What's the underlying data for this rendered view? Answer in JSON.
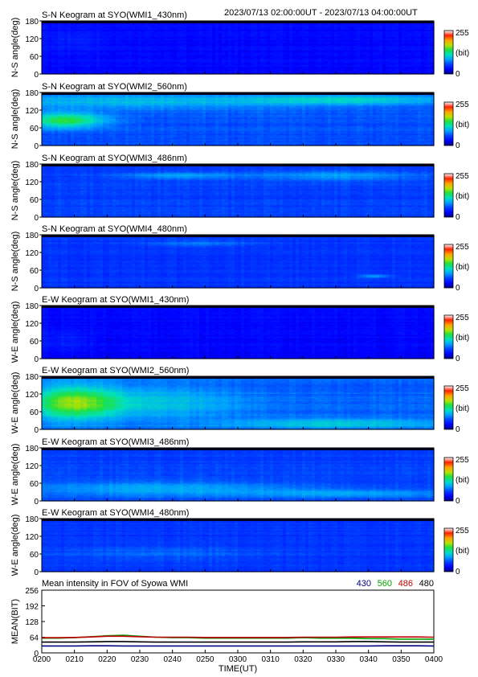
{
  "header": {
    "time_range": "2023/07/13 02:00:00UT - 2023/07/13 04:00:00UT"
  },
  "colorbar": {
    "max_label": "255",
    "unit_label": "(bit)",
    "min_label": "0"
  },
  "colors": {
    "scale": [
      "#000080",
      "#0000ff",
      "#0040ff",
      "#00a0ff",
      "#00e0c0",
      "#20e040",
      "#c0e000",
      "#ffa000",
      "#ff2000",
      "#ffffff"
    ],
    "line_430": "#000080",
    "line_560": "#00a000",
    "line_486": "#c00000",
    "line_480": "#000000"
  },
  "chart_data": [
    {
      "type": "heatmap",
      "title": "S-N Keogram at SYO(WMI1_430nm)",
      "ylabel": "N-S angle(deg)",
      "yticks": [
        "180",
        "120",
        "60",
        "0"
      ],
      "ylim": [
        0,
        180
      ],
      "xlim": [
        "02:00",
        "04:00"
      ],
      "base": 0.12,
      "blobs": [
        {
          "t": 0.08,
          "a": 110,
          "st": 0.06,
          "sa": 25,
          "v": 0.04
        }
      ]
    },
    {
      "type": "heatmap",
      "title": "S-N Keogram at SYO(WMI2_560nm)",
      "ylabel": "N-S angle(deg)",
      "yticks": [
        "180",
        "120",
        "60",
        "0"
      ],
      "ylim": [
        0,
        180
      ],
      "xlim": [
        "02:00",
        "04:00"
      ],
      "base": 0.24,
      "blobs": [
        {
          "t": 0.06,
          "a": 85,
          "st": 0.07,
          "sa": 18,
          "v": 0.32
        },
        {
          "t": 0.22,
          "a": 150,
          "st": 0.35,
          "sa": 18,
          "v": 0.14
        },
        {
          "t": 0.8,
          "a": 155,
          "st": 0.18,
          "sa": 12,
          "v": 0.16
        }
      ]
    },
    {
      "type": "heatmap",
      "title": "S-N Keogram at SYO(WMI3_486nm)",
      "ylabel": "N-S angle(deg)",
      "yticks": [
        "180",
        "120",
        "60",
        "0"
      ],
      "ylim": [
        0,
        180
      ],
      "xlim": [
        "02:00",
        "04:00"
      ],
      "base": 0.22,
      "blobs": [
        {
          "t": 0.35,
          "a": 140,
          "st": 0.1,
          "sa": 8,
          "v": 0.12
        },
        {
          "t": 0.75,
          "a": 140,
          "st": 0.15,
          "sa": 12,
          "v": 0.12
        }
      ]
    },
    {
      "type": "heatmap",
      "title": "S-N Keogram at SYO(WMI4_480nm)",
      "ylabel": "N-S angle(deg)",
      "yticks": [
        "180",
        "120",
        "60",
        "0"
      ],
      "ylim": [
        0,
        180
      ],
      "xlim": [
        "02:00",
        "04:00"
      ],
      "base": 0.2,
      "blobs": [
        {
          "t": 0.4,
          "a": 150,
          "st": 0.1,
          "sa": 8,
          "v": 0.08
        },
        {
          "t": 0.85,
          "a": 40,
          "st": 0.03,
          "sa": 4,
          "v": 0.15
        }
      ]
    },
    {
      "type": "heatmap",
      "title": "E-W Keogram at SYO(WMI1_430nm)",
      "ylabel": "W-E angle(deg)",
      "yticks": [
        "180",
        "120",
        "60",
        "0"
      ],
      "ylim": [
        0,
        180
      ],
      "xlim": [
        "02:00",
        "04:00"
      ],
      "base": 0.12,
      "blobs": [
        {
          "t": 0.05,
          "a": 60,
          "st": 0.05,
          "sa": 25,
          "v": 0.04
        }
      ]
    },
    {
      "type": "heatmap",
      "title": "E-W Keogram at SYO(WMI2_560nm)",
      "ylabel": "W-E angle(deg)",
      "yticks": [
        "180",
        "120",
        "60",
        "0"
      ],
      "ylim": [
        0,
        180
      ],
      "xlim": [
        "02:00",
        "04:00"
      ],
      "base": 0.26,
      "blobs": [
        {
          "t": 0.08,
          "a": 90,
          "st": 0.08,
          "sa": 40,
          "v": 0.34
        },
        {
          "t": 0.3,
          "a": 90,
          "st": 0.15,
          "sa": 40,
          "v": 0.12
        },
        {
          "t": 0.75,
          "a": 20,
          "st": 0.2,
          "sa": 12,
          "v": 0.16
        }
      ]
    },
    {
      "type": "heatmap",
      "title": "E-W Keogram at SYO(WMI3_486nm)",
      "ylabel": "W-E angle(deg)",
      "yticks": [
        "180",
        "120",
        "60",
        "0"
      ],
      "ylim": [
        0,
        180
      ],
      "xlim": [
        "02:00",
        "04:00"
      ],
      "base": 0.22,
      "blobs": [
        {
          "t": 0.3,
          "a": 40,
          "st": 0.25,
          "sa": 18,
          "v": 0.14
        },
        {
          "t": 0.8,
          "a": 25,
          "st": 0.2,
          "sa": 10,
          "v": 0.12
        }
      ]
    },
    {
      "type": "heatmap",
      "title": "E-W Keogram at SYO(WMI4_480nm)",
      "ylabel": "W-E angle(deg)",
      "yticks": [
        "180",
        "120",
        "60",
        "0"
      ],
      "ylim": [
        0,
        180
      ],
      "xlim": [
        "02:00",
        "04:00"
      ],
      "base": 0.2,
      "blobs": [
        {
          "t": 0.3,
          "a": 60,
          "st": 0.2,
          "sa": 20,
          "v": 0.06
        }
      ]
    },
    {
      "type": "line",
      "title": "Mean intensity in FOV of Syowa WMI",
      "ylabel": "MEAN(BIT)",
      "xlabel": "TIME(UT)",
      "yticks": [
        "256",
        "192",
        "128",
        "64",
        "0"
      ],
      "ylim": [
        0,
        256
      ],
      "xticks": [
        "0200",
        "0210",
        "0220",
        "0230",
        "0240",
        "0250",
        "0300",
        "0310",
        "0320",
        "0330",
        "0340",
        "0350",
        "0400"
      ],
      "x": [
        0,
        5,
        10,
        15,
        20,
        25,
        30,
        35,
        40,
        45,
        50,
        55,
        60,
        65,
        70,
        75,
        80,
        85,
        90,
        95,
        100,
        105,
        110,
        115,
        120
      ],
      "series": [
        {
          "name": "430",
          "color": "#000080",
          "values": [
            28,
            28,
            28,
            29,
            29,
            28,
            28,
            28,
            28,
            28,
            28,
            28,
            28,
            28,
            28,
            28,
            28,
            28,
            28,
            28,
            28,
            29,
            29,
            29,
            28
          ]
        },
        {
          "name": "560",
          "color": "#00a000",
          "values": [
            60,
            60,
            62,
            66,
            70,
            72,
            68,
            64,
            62,
            62,
            60,
            60,
            60,
            60,
            60,
            60,
            62,
            60,
            60,
            60,
            58,
            58,
            56,
            56,
            56
          ]
        },
        {
          "name": "486",
          "color": "#c00000",
          "values": [
            62,
            62,
            63,
            65,
            68,
            68,
            66,
            64,
            64,
            64,
            63,
            63,
            63,
            63,
            63,
            63,
            64,
            64,
            64,
            65,
            65,
            65,
            65,
            65,
            64
          ]
        },
        {
          "name": "480",
          "color": "#000000",
          "values": [
            44,
            44,
            44,
            45,
            46,
            46,
            45,
            44,
            44,
            44,
            44,
            44,
            44,
            44,
            44,
            44,
            45,
            45,
            45,
            46,
            46,
            45,
            44,
            44,
            44
          ]
        }
      ]
    }
  ]
}
